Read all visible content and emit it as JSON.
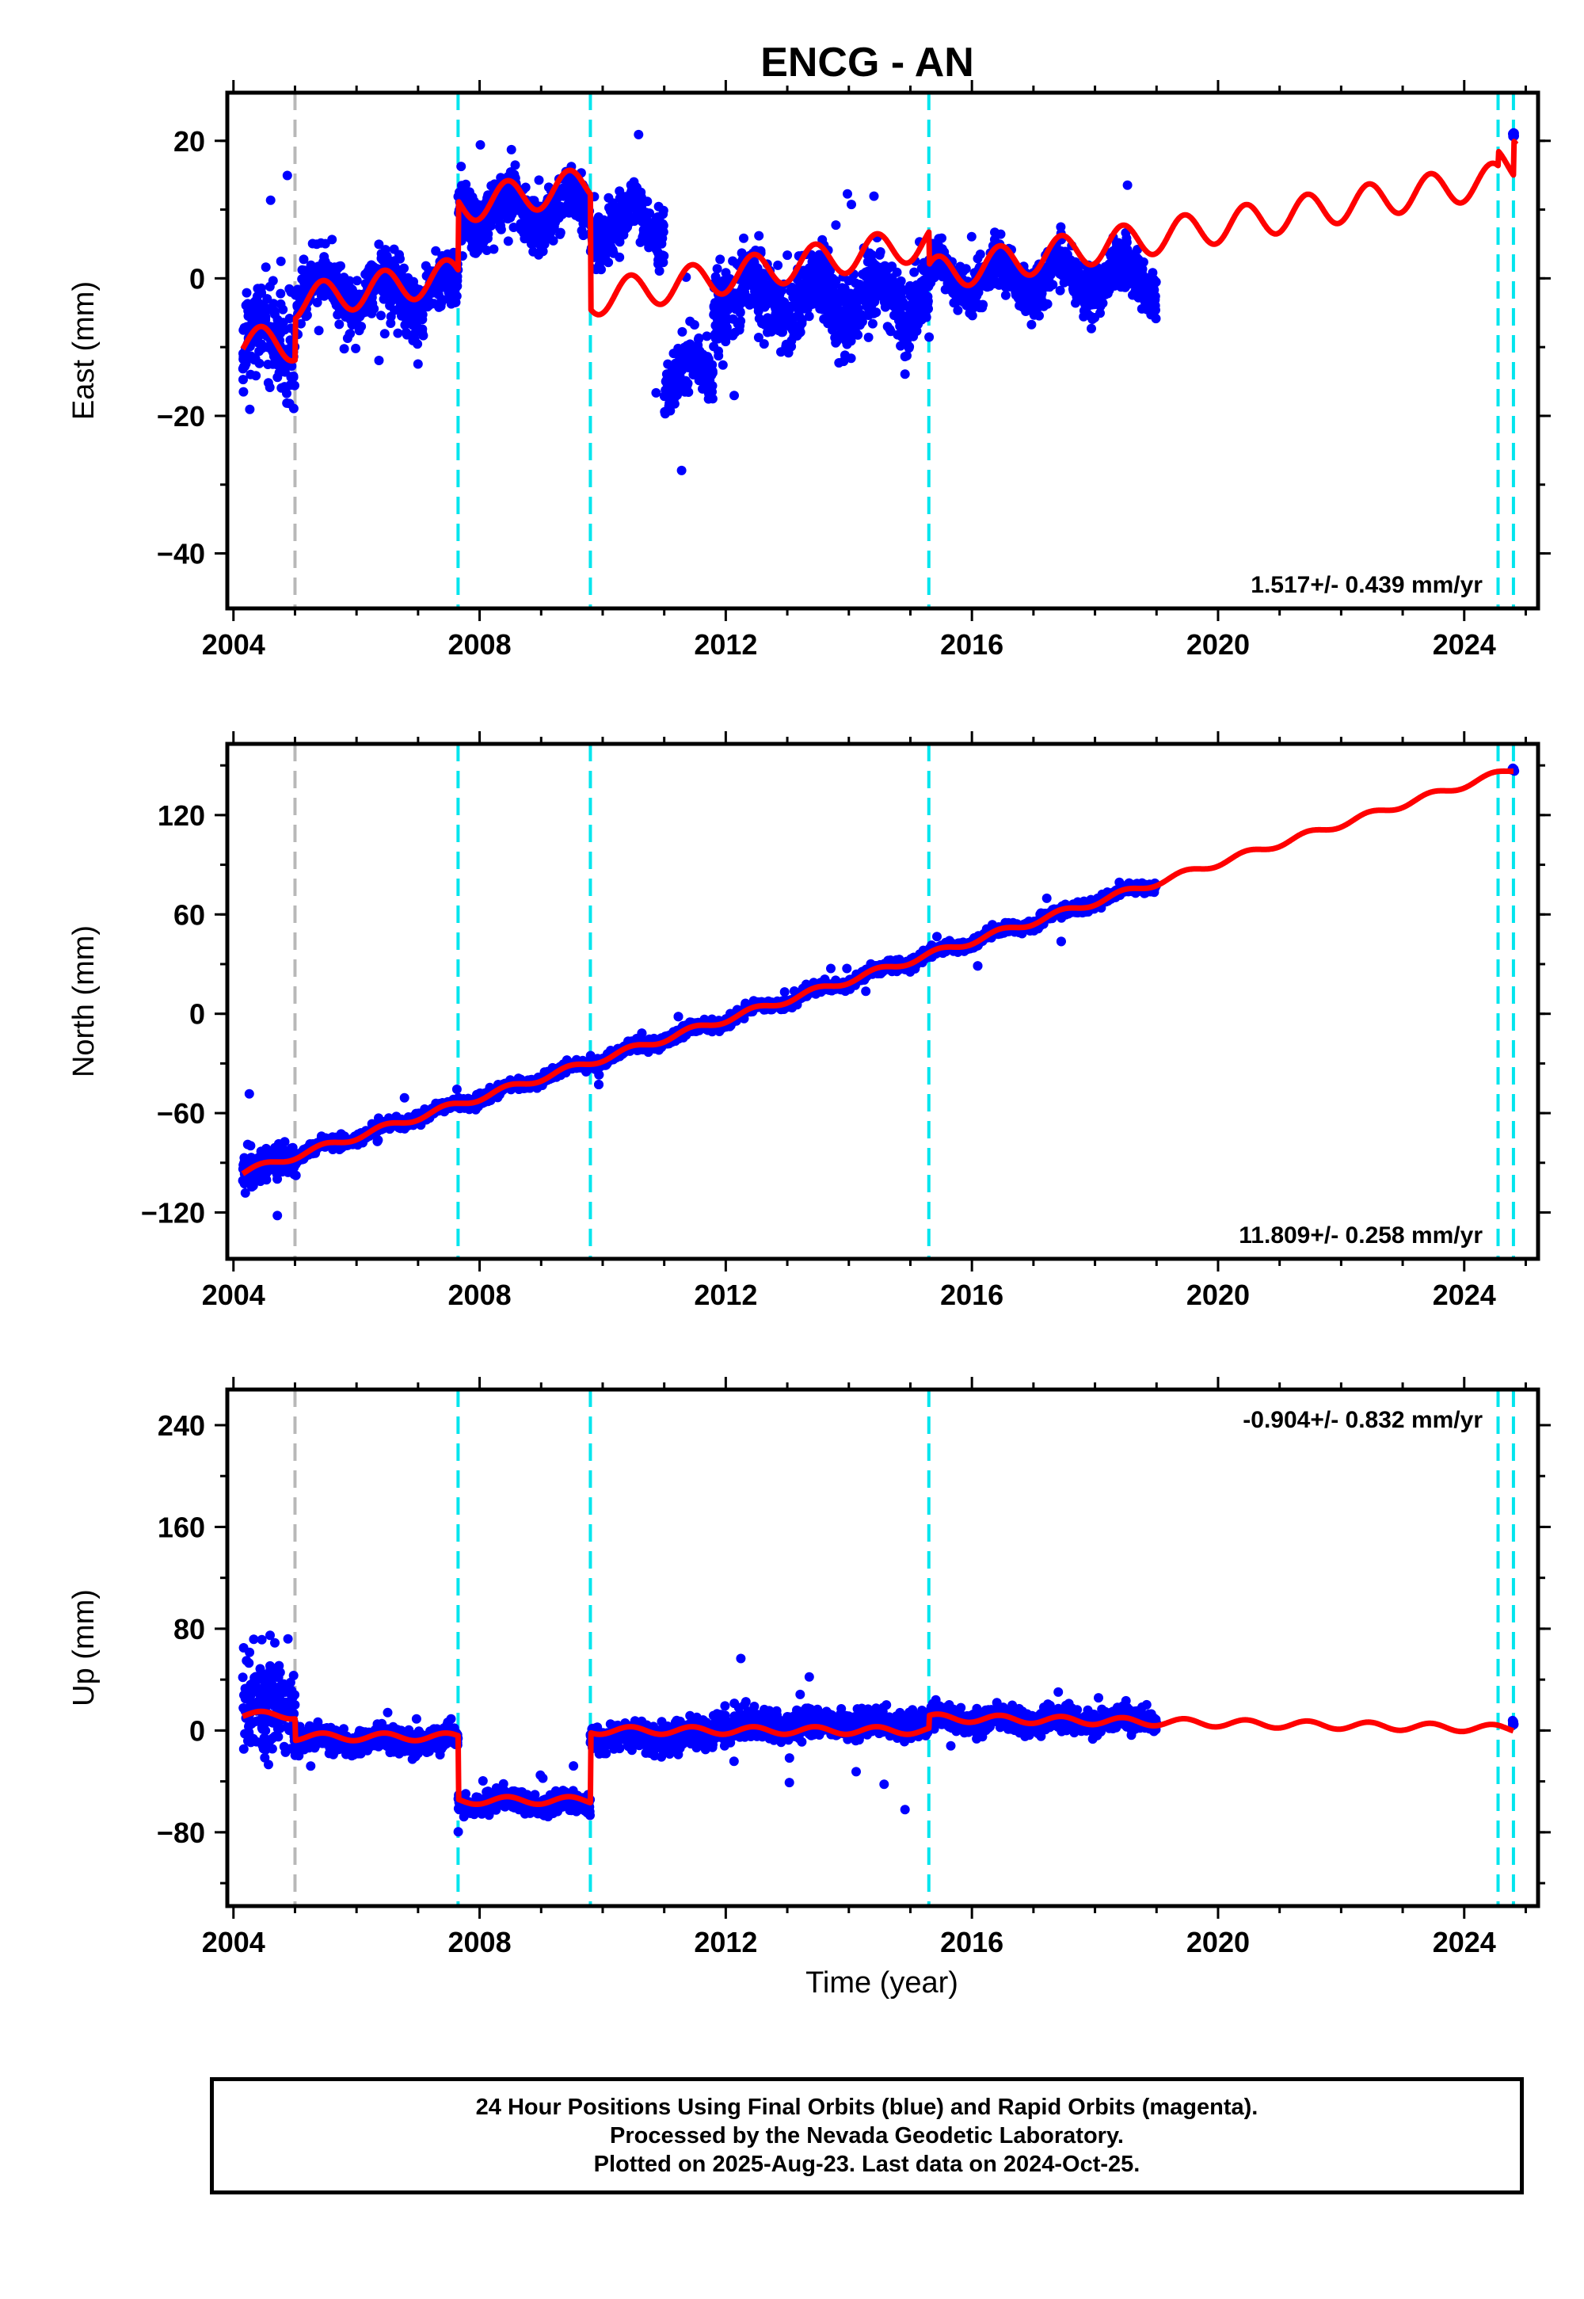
{
  "chart_data": {
    "title": "ENCG - AN",
    "type": "scatter",
    "xlabel": "Time (year)",
    "xlim": [
      2003.9,
      2025.2
    ],
    "x_ticks": [
      2004,
      2008,
      2012,
      2016,
      2020,
      2024
    ],
    "grid": false,
    "colors": {
      "final_orbits": "#0000ff",
      "model": "#ff0000",
      "antenna_change": "#b8b8b8",
      "equipment_change": "#00e5ee"
    },
    "antenna_change_epochs": [
      2005.0
    ],
    "equipment_change_epochs": [
      2007.65,
      2009.8,
      2015.3,
      2024.55,
      2024.8
    ],
    "panels": [
      {
        "name": "East",
        "ylabel": "East (mm)",
        "ylim": [
          -48,
          27
        ],
        "y_ticks": [
          -40,
          -20,
          0,
          20
        ],
        "rate_label": "1.517+/- 0.439 mm/yr",
        "rate_position": "bottom-right",
        "model_segments": [
          {
            "start": 2004.15,
            "end": 2005.0,
            "offset": -9.5,
            "slope": 0
          },
          {
            "start": 2005.0,
            "end": 2007.65,
            "offset": -3.5,
            "slope": 1.5
          },
          {
            "start": 2007.65,
            "end": 2009.8,
            "offset": 10.5,
            "slope": 1.5
          },
          {
            "start": 2009.8,
            "end": 2015.3,
            "offset": -3.0,
            "slope": 1.5
          },
          {
            "start": 2015.3,
            "end": 2024.55,
            "offset": 0.5,
            "slope": 1.5
          },
          {
            "start": 2024.55,
            "end": 2024.8,
            "offset": 16.5,
            "slope": 0
          },
          {
            "start": 2024.8,
            "end": 2024.85,
            "offset": 21.5,
            "slope": 0
          }
        ],
        "seasonal_amplitude": 2.5,
        "data_segments": [
          {
            "start": 2004.15,
            "end": 2005.0,
            "center": -9,
            "scatter": 6
          },
          {
            "start": 2005.0,
            "end": 2007.65,
            "center": -2,
            "scatter": 3.5
          },
          {
            "start": 2007.65,
            "end": 2009.8,
            "center": 10,
            "scatter": 3.5
          },
          {
            "start": 2009.8,
            "end": 2011.0,
            "center": 8,
            "scatter": 3.5
          },
          {
            "start": 2011.0,
            "end": 2011.8,
            "center": -14,
            "scatter": 3.5
          },
          {
            "start": 2011.8,
            "end": 2015.3,
            "center": -3,
            "scatter": 5
          },
          {
            "start": 2015.3,
            "end": 2019.0,
            "center": 0,
            "scatter": 3
          },
          {
            "start": 2024.78,
            "end": 2024.82,
            "center": 22.5,
            "scatter": 0.6
          }
        ]
      },
      {
        "name": "North",
        "ylabel": "North (mm)",
        "ylim": [
          -148,
          163
        ],
        "y_ticks": [
          -120,
          -60,
          0,
          60,
          120
        ],
        "rate_label": "11.809+/- 0.258 mm/yr",
        "rate_position": "bottom-right",
        "model_segments": [
          {
            "start": 2004.15,
            "end": 2024.8,
            "offset": -96,
            "slope": 11.8,
            "ref": 2004.15
          }
        ],
        "seasonal_amplitude": 2,
        "data_segments": [
          {
            "start": 2004.15,
            "end": 2005.0,
            "center_offset": 0,
            "scatter": 9
          },
          {
            "start": 2005.0,
            "end": 2019.0,
            "center_offset": 0,
            "scatter": 3
          },
          {
            "start": 2024.78,
            "end": 2024.82,
            "center_offset": 1,
            "scatter": 1
          }
        ]
      },
      {
        "name": "Up",
        "ylabel": "Up (mm)",
        "ylim": [
          -138,
          268
        ],
        "y_ticks": [
          -80,
          0,
          80,
          160,
          240
        ],
        "rate_label": "-0.904+/- 0.832 mm/yr",
        "rate_position": "top-right",
        "model_segments": [
          {
            "start": 2004.15,
            "end": 2005.0,
            "offset": 12,
            "slope": 0
          },
          {
            "start": 2005.0,
            "end": 2007.65,
            "offset": -5,
            "slope": 0
          },
          {
            "start": 2007.65,
            "end": 2009.8,
            "offset": -55,
            "slope": 0
          },
          {
            "start": 2009.8,
            "end": 2015.3,
            "offset": 0,
            "slope": 0
          },
          {
            "start": 2015.3,
            "end": 2024.8,
            "offset": 10,
            "slope": -0.9,
            "ref": 2015.3
          }
        ],
        "seasonal_amplitude": 3,
        "data_segments": [
          {
            "start": 2004.15,
            "end": 2005.0,
            "center": 20,
            "scatter": 35
          },
          {
            "start": 2005.0,
            "end": 2007.65,
            "center": -8,
            "scatter": 8
          },
          {
            "start": 2007.65,
            "end": 2009.8,
            "center": -57,
            "scatter": 7
          },
          {
            "start": 2009.8,
            "end": 2011.8,
            "center": -5,
            "scatter": 9
          },
          {
            "start": 2011.8,
            "end": 2015.3,
            "center": 5,
            "scatter": 10
          },
          {
            "start": 2015.3,
            "end": 2019.0,
            "center": 8,
            "scatter": 8
          },
          {
            "start": 2024.78,
            "end": 2024.82,
            "center": 7,
            "scatter": 3
          }
        ]
      }
    ]
  },
  "footer": {
    "line1": "24 Hour Positions Using Final Orbits (blue) and Rapid Orbits (magenta).",
    "line2": "Processed by the Nevada Geodetic Laboratory.",
    "line3": "Plotted on 2025-Aug-23. Last data on 2024-Oct-25."
  }
}
